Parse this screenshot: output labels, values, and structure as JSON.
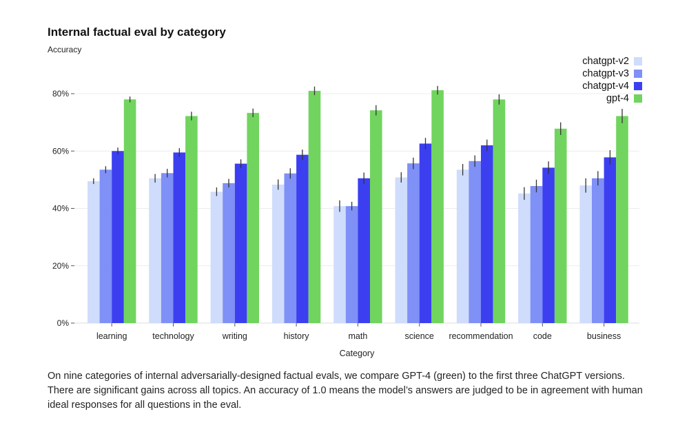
{
  "chart_data": {
    "type": "bar",
    "title": "Internal factual eval by category",
    "ylabel": "Accuracy",
    "xlabel": "Category",
    "ylim": [
      0,
      0.85
    ],
    "yticks": [
      {
        "value": 0,
        "label": "0%"
      },
      {
        "value": 0.2,
        "label": "20%"
      },
      {
        "value": 0.4,
        "label": "40%"
      },
      {
        "value": 0.6,
        "label": "60%"
      },
      {
        "value": 0.8,
        "label": "80%"
      }
    ],
    "grid": true,
    "legend_position": "top-right",
    "categories": [
      "learning",
      "technology",
      "writing",
      "history",
      "math",
      "science",
      "recommendation",
      "code",
      "business"
    ],
    "series": [
      {
        "name": "chatgpt-v2",
        "color": "#cfdcfb",
        "values": [
          0.495,
          0.505,
          0.458,
          0.483,
          0.408,
          0.508,
          0.535,
          0.452,
          0.48
        ],
        "errors": [
          0.01,
          0.015,
          0.015,
          0.018,
          0.02,
          0.018,
          0.02,
          0.022,
          0.025
        ]
      },
      {
        "name": "chatgpt-v3",
        "color": "#7f90f6",
        "values": [
          0.535,
          0.523,
          0.488,
          0.522,
          0.408,
          0.557,
          0.565,
          0.478,
          0.505
        ],
        "errors": [
          0.012,
          0.015,
          0.015,
          0.018,
          0.015,
          0.02,
          0.02,
          0.022,
          0.025
        ]
      },
      {
        "name": "chatgpt-v4",
        "color": "#3c3ff0",
        "values": [
          0.6,
          0.595,
          0.556,
          0.587,
          0.505,
          0.626,
          0.62,
          0.542,
          0.578
        ],
        "errors": [
          0.012,
          0.015,
          0.015,
          0.018,
          0.02,
          0.02,
          0.02,
          0.022,
          0.025
        ]
      },
      {
        "name": "gpt-4",
        "color": "#71d45e",
        "values": [
          0.78,
          0.722,
          0.733,
          0.81,
          0.742,
          0.812,
          0.78,
          0.678,
          0.722
        ],
        "errors": [
          0.01,
          0.015,
          0.015,
          0.015,
          0.018,
          0.015,
          0.018,
          0.022,
          0.025
        ]
      }
    ]
  },
  "caption": "On nine categories of internal adversarially-designed factual evals, we compare GPT-4 (green) to the first three ChatGPT versions. There are significant gains across all topics. An accuracy of 1.0 means the model’s answers are judged to be in agreement with human ideal responses for all questions in the eval."
}
